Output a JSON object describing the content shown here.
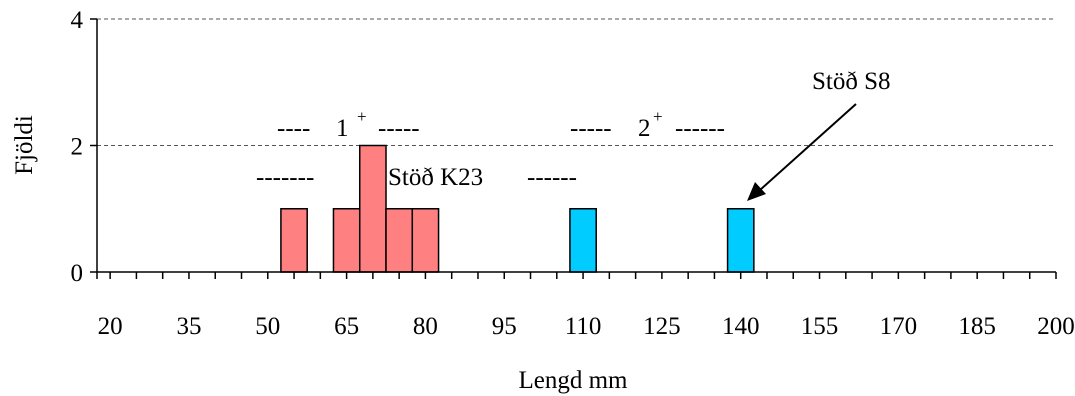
{
  "chart_data": {
    "type": "bar",
    "xlabel": "Lengd mm",
    "ylabel": "Fjöldi",
    "xlim": [
      17.5,
      200
    ],
    "ylim": [
      0,
      4
    ],
    "x_ticks": [
      "20",
      "35",
      "50",
      "65",
      "80",
      "95",
      "110",
      "125",
      "140",
      "155",
      "170",
      "185",
      "200"
    ],
    "y_ticks": [
      "0",
      "2",
      "4"
    ],
    "grid": "horizontal dashed",
    "series": [
      {
        "name": "Stöð K23",
        "color": "#ff8080",
        "bins": [
          {
            "x": 55,
            "value": 1
          },
          {
            "x": 65,
            "value": 1
          },
          {
            "x": 70,
            "value": 2
          },
          {
            "x": 75,
            "value": 1
          },
          {
            "x": 80,
            "value": 1
          }
        ]
      },
      {
        "name": "Stöð S8",
        "color": "#00ccff",
        "bins": [
          {
            "x": 110,
            "value": 1
          },
          {
            "x": 140,
            "value": 1
          }
        ]
      }
    ],
    "annotations": {
      "age1_left": "----",
      "age1_main": "1",
      "age1_sup": "+",
      "age1_right": "-----",
      "age2_left": "-----",
      "age2_main": "2",
      "age2_sup": "+",
      "age2_right": "------",
      "k23_left": "-------",
      "k23_label": "Stöð K23",
      "k23_right": "------",
      "s8_label": "Stöð S8"
    }
  }
}
